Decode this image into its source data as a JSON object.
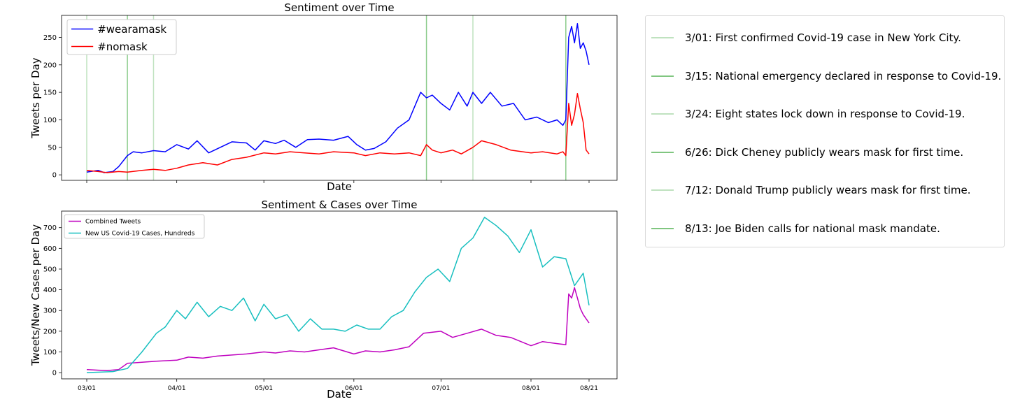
{
  "chart_data": [
    {
      "type": "line",
      "title": "Sentiment over Time",
      "xlabel": "Date",
      "ylabel": "Tweets per Day",
      "xlim": [
        "2020-03-01",
        "2020-08-21"
      ],
      "ylim": [
        -10,
        290
      ],
      "y_ticks": [
        0,
        50,
        100,
        150,
        200,
        250
      ],
      "grid": false,
      "legend_position": "top-left",
      "vlines": [
        "2020-03-01",
        "2020-03-15",
        "2020-03-24",
        "2020-06-26",
        "2020-07-12",
        "2020-08-13"
      ],
      "series": [
        {
          "name": "#wearamask",
          "color": "#0000ff",
          "x": [
            "2020-03-01",
            "2020-03-05",
            "2020-03-07",
            "2020-03-10",
            "2020-03-12",
            "2020-03-15",
            "2020-03-17",
            "2020-03-20",
            "2020-03-24",
            "2020-03-28",
            "2020-04-01",
            "2020-04-05",
            "2020-04-08",
            "2020-04-12",
            "2020-04-16",
            "2020-04-20",
            "2020-04-25",
            "2020-04-28",
            "2020-05-01",
            "2020-05-05",
            "2020-05-08",
            "2020-05-12",
            "2020-05-16",
            "2020-05-20",
            "2020-05-25",
            "2020-05-30",
            "2020-06-02",
            "2020-06-05",
            "2020-06-08",
            "2020-06-12",
            "2020-06-16",
            "2020-06-20",
            "2020-06-24",
            "2020-06-26",
            "2020-06-28",
            "2020-07-01",
            "2020-07-04",
            "2020-07-07",
            "2020-07-10",
            "2020-07-12",
            "2020-07-15",
            "2020-07-18",
            "2020-07-22",
            "2020-07-26",
            "2020-07-30",
            "2020-08-03",
            "2020-08-07",
            "2020-08-10",
            "2020-08-12",
            "2020-08-13",
            "2020-08-14",
            "2020-08-15",
            "2020-08-16",
            "2020-08-17",
            "2020-08-18",
            "2020-08-19",
            "2020-08-20",
            "2020-08-21"
          ],
          "y": [
            5,
            8,
            4,
            6,
            15,
            35,
            42,
            40,
            44,
            42,
            55,
            47,
            62,
            40,
            50,
            60,
            58,
            45,
            62,
            57,
            63,
            50,
            64,
            65,
            63,
            70,
            55,
            45,
            48,
            60,
            85,
            100,
            150,
            140,
            145,
            130,
            118,
            150,
            125,
            150,
            130,
            150,
            125,
            130,
            100,
            105,
            95,
            100,
            90,
            100,
            250,
            270,
            240,
            275,
            230,
            240,
            225,
            200
          ]
        },
        {
          "name": "#nomask",
          "color": "#ff0000",
          "x": [
            "2020-03-01",
            "2020-03-05",
            "2020-03-08",
            "2020-03-12",
            "2020-03-15",
            "2020-03-20",
            "2020-03-24",
            "2020-03-28",
            "2020-04-01",
            "2020-04-05",
            "2020-04-10",
            "2020-04-15",
            "2020-04-20",
            "2020-04-25",
            "2020-05-01",
            "2020-05-05",
            "2020-05-10",
            "2020-05-15",
            "2020-05-20",
            "2020-05-25",
            "2020-06-01",
            "2020-06-05",
            "2020-06-10",
            "2020-06-15",
            "2020-06-20",
            "2020-06-24",
            "2020-06-26",
            "2020-06-28",
            "2020-07-01",
            "2020-07-05",
            "2020-07-08",
            "2020-07-12",
            "2020-07-15",
            "2020-07-20",
            "2020-07-25",
            "2020-08-01",
            "2020-08-05",
            "2020-08-10",
            "2020-08-12",
            "2020-08-13",
            "2020-08-14",
            "2020-08-15",
            "2020-08-16",
            "2020-08-17",
            "2020-08-18",
            "2020-08-19",
            "2020-08-20",
            "2020-08-21"
          ],
          "y": [
            8,
            6,
            4,
            6,
            5,
            8,
            10,
            8,
            12,
            18,
            22,
            18,
            28,
            32,
            40,
            38,
            42,
            40,
            38,
            42,
            40,
            35,
            40,
            38,
            40,
            35,
            55,
            45,
            40,
            45,
            38,
            50,
            62,
            55,
            45,
            40,
            42,
            38,
            42,
            35,
            130,
            90,
            110,
            148,
            120,
            95,
            45,
            38
          ]
        }
      ]
    },
    {
      "type": "line",
      "title": "Sentiment & Cases over Time",
      "xlabel": "Date",
      "ylabel": "Tweets/New Cases per Day",
      "xlim": [
        "2020-03-01",
        "2020-08-21"
      ],
      "ylim": [
        -30,
        780
      ],
      "x_ticks": [
        "03/01",
        "04/01",
        "05/01",
        "06/01",
        "07/01",
        "08/01",
        "08/21"
      ],
      "y_ticks": [
        0,
        100,
        200,
        300,
        400,
        500,
        600,
        700
      ],
      "grid": false,
      "legend_position": "top-left",
      "series": [
        {
          "name": "Combined Tweets",
          "color": "#bf00bf",
          "x": [
            "2020-03-01",
            "2020-03-05",
            "2020-03-08",
            "2020-03-12",
            "2020-03-15",
            "2020-03-20",
            "2020-03-25",
            "2020-04-01",
            "2020-04-05",
            "2020-04-10",
            "2020-04-15",
            "2020-04-20",
            "2020-04-25",
            "2020-05-01",
            "2020-05-05",
            "2020-05-10",
            "2020-05-15",
            "2020-05-20",
            "2020-05-25",
            "2020-06-01",
            "2020-06-05",
            "2020-06-10",
            "2020-06-15",
            "2020-06-20",
            "2020-06-25",
            "2020-07-01",
            "2020-07-05",
            "2020-07-10",
            "2020-07-15",
            "2020-07-20",
            "2020-07-25",
            "2020-08-01",
            "2020-08-05",
            "2020-08-10",
            "2020-08-13",
            "2020-08-14",
            "2020-08-15",
            "2020-08-16",
            "2020-08-17",
            "2020-08-18",
            "2020-08-19",
            "2020-08-20",
            "2020-08-21"
          ],
          "y": [
            15,
            12,
            10,
            15,
            45,
            50,
            55,
            60,
            75,
            70,
            80,
            85,
            90,
            100,
            95,
            105,
            100,
            110,
            120,
            90,
            105,
            100,
            110,
            125,
            190,
            200,
            170,
            190,
            210,
            180,
            170,
            130,
            150,
            140,
            135,
            380,
            360,
            410,
            360,
            310,
            280,
            260,
            240
          ]
        },
        {
          "name": "New US Covid-19 Cases, Hundreds",
          "color": "#17bfbf",
          "x": [
            "2020-03-01",
            "2020-03-10",
            "2020-03-15",
            "2020-03-20",
            "2020-03-25",
            "2020-03-28",
            "2020-04-01",
            "2020-04-04",
            "2020-04-08",
            "2020-04-12",
            "2020-04-16",
            "2020-04-20",
            "2020-04-24",
            "2020-04-28",
            "2020-05-01",
            "2020-05-05",
            "2020-05-09",
            "2020-05-13",
            "2020-05-17",
            "2020-05-21",
            "2020-05-25",
            "2020-05-29",
            "2020-06-02",
            "2020-06-06",
            "2020-06-10",
            "2020-06-14",
            "2020-06-18",
            "2020-06-22",
            "2020-06-26",
            "2020-06-30",
            "2020-07-04",
            "2020-07-08",
            "2020-07-12",
            "2020-07-16",
            "2020-07-20",
            "2020-07-24",
            "2020-07-28",
            "2020-08-01",
            "2020-08-05",
            "2020-08-09",
            "2020-08-13",
            "2020-08-16",
            "2020-08-19",
            "2020-08-21"
          ],
          "y": [
            0,
            5,
            20,
            100,
            190,
            220,
            300,
            260,
            340,
            270,
            320,
            300,
            360,
            250,
            330,
            260,
            280,
            200,
            260,
            210,
            210,
            200,
            230,
            210,
            210,
            270,
            300,
            390,
            460,
            500,
            440,
            600,
            650,
            750,
            710,
            660,
            580,
            690,
            510,
            560,
            550,
            420,
            480,
            325
          ]
        }
      ]
    }
  ],
  "events": [
    {
      "date": "2020-03-01",
      "label": "3/01: First confirmed Covid-19 case in New York City."
    },
    {
      "date": "2020-03-15",
      "label": "3/15: National emergency declared in response to Covid-19."
    },
    {
      "date": "2020-03-24",
      "label": "3/24: Eight states lock down in response to Covid-19."
    },
    {
      "date": "2020-06-26",
      "label": "6/26: Dick Cheney publicly wears mask for first time."
    },
    {
      "date": "2020-07-12",
      "label": "7/12: Donald Trump publicly wears mask for first time."
    },
    {
      "date": "2020-08-13",
      "label": "8/13: Joe Biden calls for national mask mandate."
    }
  ]
}
